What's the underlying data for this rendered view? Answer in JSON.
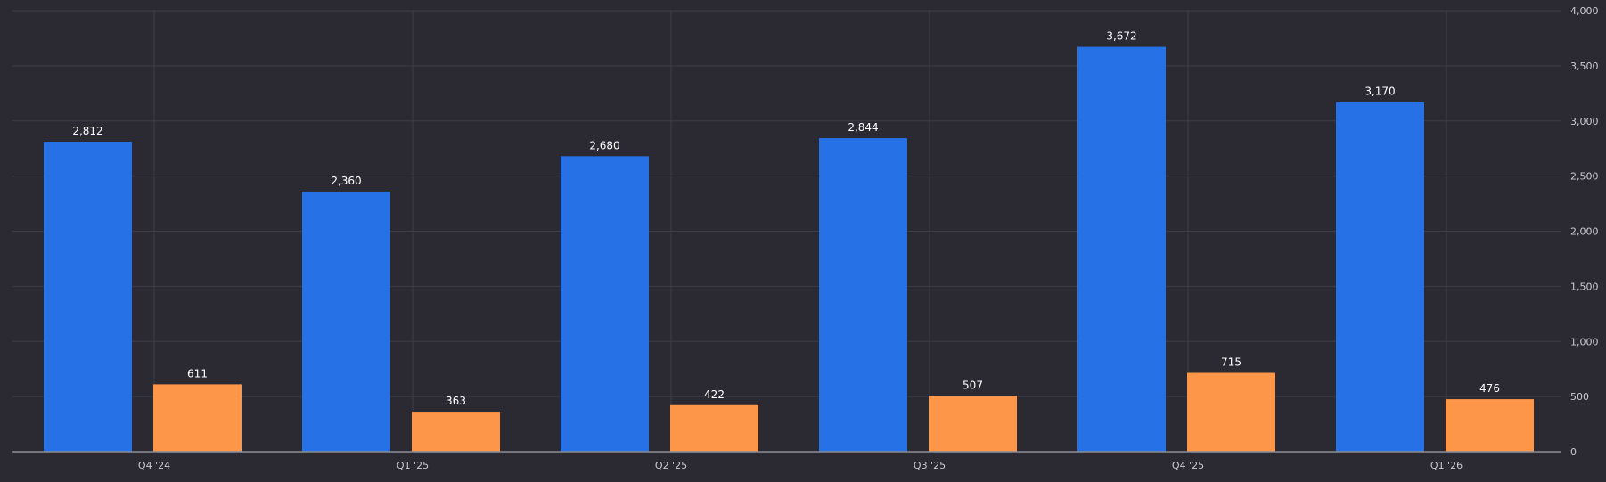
{
  "chart_data": {
    "type": "bar",
    "categories": [
      "Q4 '24",
      "Q1 '25",
      "Q2 '25",
      "Q3 '25",
      "Q4 '25",
      "Q1 '26"
    ],
    "series": [
      {
        "values": [
          2812,
          2360,
          2680,
          2844,
          3672,
          3170
        ],
        "color": "#2671e6"
      },
      {
        "values": [
          611,
          363,
          422,
          507,
          715,
          476
        ],
        "color": "#fe964a"
      }
    ],
    "data_labels": [
      [
        "2,812",
        "2,360",
        "2,680",
        "2,844",
        "3,672",
        "3,170"
      ],
      [
        "611",
        "363",
        "422",
        "507",
        "715",
        "476"
      ]
    ],
    "y_ticks": [
      0,
      500,
      1000,
      1500,
      2000,
      2500,
      3000,
      3500,
      4000
    ],
    "y_tick_labels": [
      "0",
      "500",
      "1,000",
      "1,500",
      "2,000",
      "2,500",
      "3,000",
      "3,500",
      "4,000"
    ],
    "ylim": [
      0,
      4000
    ],
    "y_axis_side": "right",
    "grid": true,
    "title": "",
    "xlabel": "",
    "ylabel": "",
    "colors": {
      "background": "#2b2a33",
      "grid": "#3e3d47",
      "axis": "#8c8c96",
      "tick_text": "#c9c9cf",
      "label_text": "#ffffff"
    }
  }
}
